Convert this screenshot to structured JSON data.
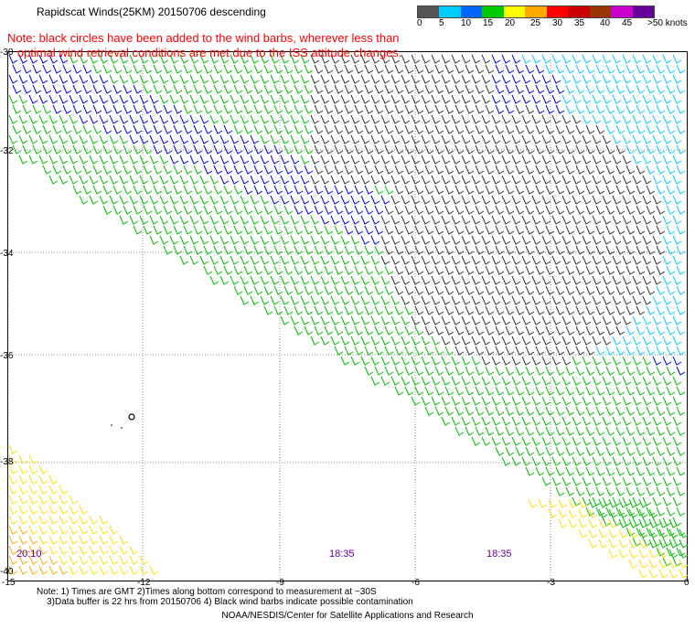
{
  "title": "Rapidscat Winds(25KM) 20150706 descending",
  "note": {
    "line1": "Note: black circles have been added to the wind barbs, wherever less than",
    "line2": "optimal wind retrieval conditions are met due to the ISS attitude changes."
  },
  "color_scale": {
    "labels": [
      "0",
      "5",
      "10",
      "15",
      "20",
      "25",
      "30",
      "35",
      "40",
      "45",
      ">50 knots"
    ],
    "colors": [
      "#555555",
      "#00ccff",
      "#0066ff",
      "#00cc00",
      "#ffff00",
      "#ffaa00",
      "#ff0000",
      "#cc0000",
      "#993300",
      "#cc00cc",
      "#660099"
    ]
  },
  "lat_labels": [
    "-30",
    "-32",
    "-34",
    "-36",
    "-38",
    "-40"
  ],
  "lon_labels": [
    "-15",
    "-12",
    "-9",
    "-6",
    "-3",
    "0"
  ],
  "times": [
    "20:10",
    "18:35",
    "18:35"
  ],
  "footer": {
    "line1": "Note: 1) Times are GMT 2)Times along bottom correspond to measurement at ~30S",
    "line2": "3)Data buffer is 22 hrs from 20150706 4) Black wind barbs indicate possible contamination",
    "line3": "NOAA/NESDIS/Center for Satellite Applications and Research"
  }
}
